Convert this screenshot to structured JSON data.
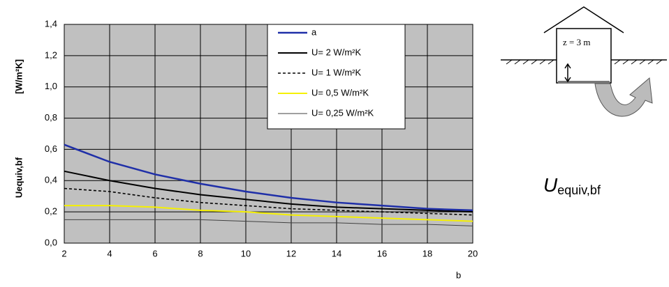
{
  "chart_data": {
    "type": "line",
    "ylabel": "Uequiv,bf",
    "ylabel_unit": "[W/m²K]",
    "xlabel": "b",
    "x": [
      2,
      4,
      6,
      8,
      10,
      12,
      14,
      16,
      18,
      20
    ],
    "series": [
      {
        "name": "a",
        "color": "#1f2fa8",
        "dashed": false,
        "values": [
          0.63,
          0.52,
          0.44,
          0.38,
          0.33,
          0.29,
          0.26,
          0.24,
          0.22,
          0.21
        ]
      },
      {
        "name": "U= 2 W/m²K",
        "color": "#000000",
        "dashed": false,
        "values": [
          0.46,
          0.4,
          0.35,
          0.31,
          0.28,
          0.25,
          0.23,
          0.22,
          0.21,
          0.2
        ]
      },
      {
        "name": "U= 1 W/m²K",
        "color": "#000000",
        "dashed": true,
        "values": [
          0.35,
          0.33,
          0.29,
          0.26,
          0.24,
          0.22,
          0.21,
          0.2,
          0.19,
          0.18
        ]
      },
      {
        "name": "U= 0,5 W/m²K",
        "color": "#f5f000",
        "dashed": false,
        "values": [
          0.24,
          0.24,
          0.23,
          0.21,
          0.2,
          0.18,
          0.17,
          0.16,
          0.15,
          0.14
        ]
      },
      {
        "name": "U= 0,25 W/m²K",
        "color": "#404040",
        "dashed": false,
        "values": [
          0.15,
          0.15,
          0.15,
          0.15,
          0.14,
          0.13,
          0.13,
          0.12,
          0.12,
          0.11
        ]
      }
    ],
    "xlim": [
      2,
      20
    ],
    "xticks": [
      2,
      4,
      6,
      8,
      10,
      12,
      14,
      16,
      18,
      20
    ],
    "ylim": [
      0,
      1.4
    ],
    "yticks": [
      {
        "value": 0,
        "label": "0,0"
      },
      {
        "value": 0.2,
        "label": "0,2"
      },
      {
        "value": 0.4,
        "label": "0,4"
      },
      {
        "value": 0.6,
        "label": "0,6"
      },
      {
        "value": 0.8,
        "label": "0,8"
      },
      {
        "value": 1.0,
        "label": "1,0"
      },
      {
        "value": 1.2,
        "label": "1,2"
      },
      {
        "value": 1.4,
        "label": "1,4"
      }
    ],
    "grid": true,
    "background": "#c0c0c0",
    "legend": "top-right"
  },
  "diagram": {
    "depth_label": "z = 3 m",
    "symbol": "U",
    "subscript": "equiv,bf"
  }
}
